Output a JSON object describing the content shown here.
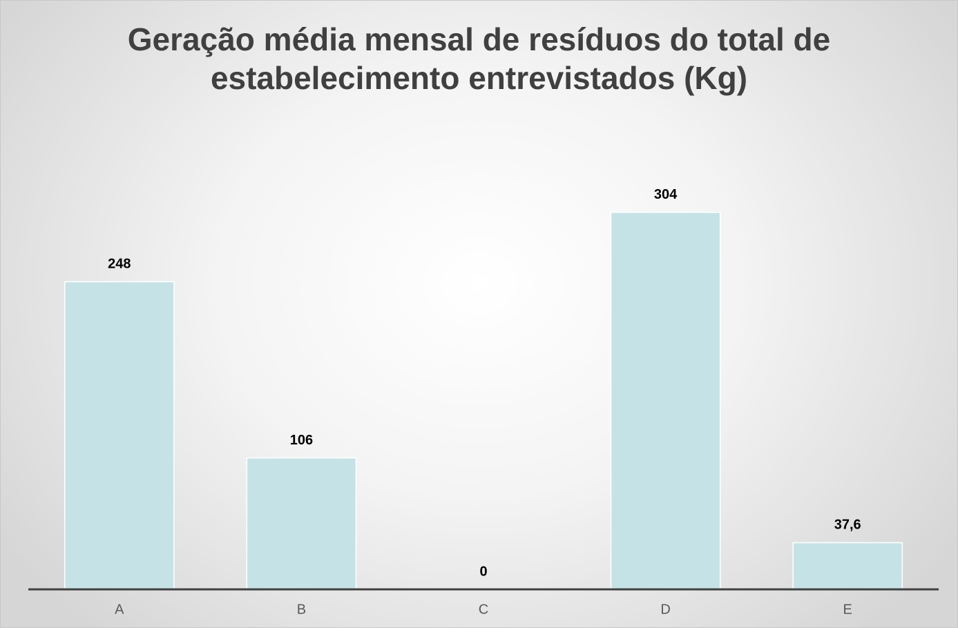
{
  "chart_data": {
    "type": "bar",
    "title": "Geração média mensal de resíduos do total de estabelecimento entrevistados (Kg)",
    "categories": [
      "A",
      "B",
      "C",
      "D",
      "E"
    ],
    "values": [
      248,
      106,
      0,
      304,
      37.6
    ],
    "value_labels": [
      "248",
      "106",
      "0",
      "304",
      "37,6"
    ],
    "color": "#c5e3e7",
    "ylim": [
      0,
      350
    ]
  }
}
